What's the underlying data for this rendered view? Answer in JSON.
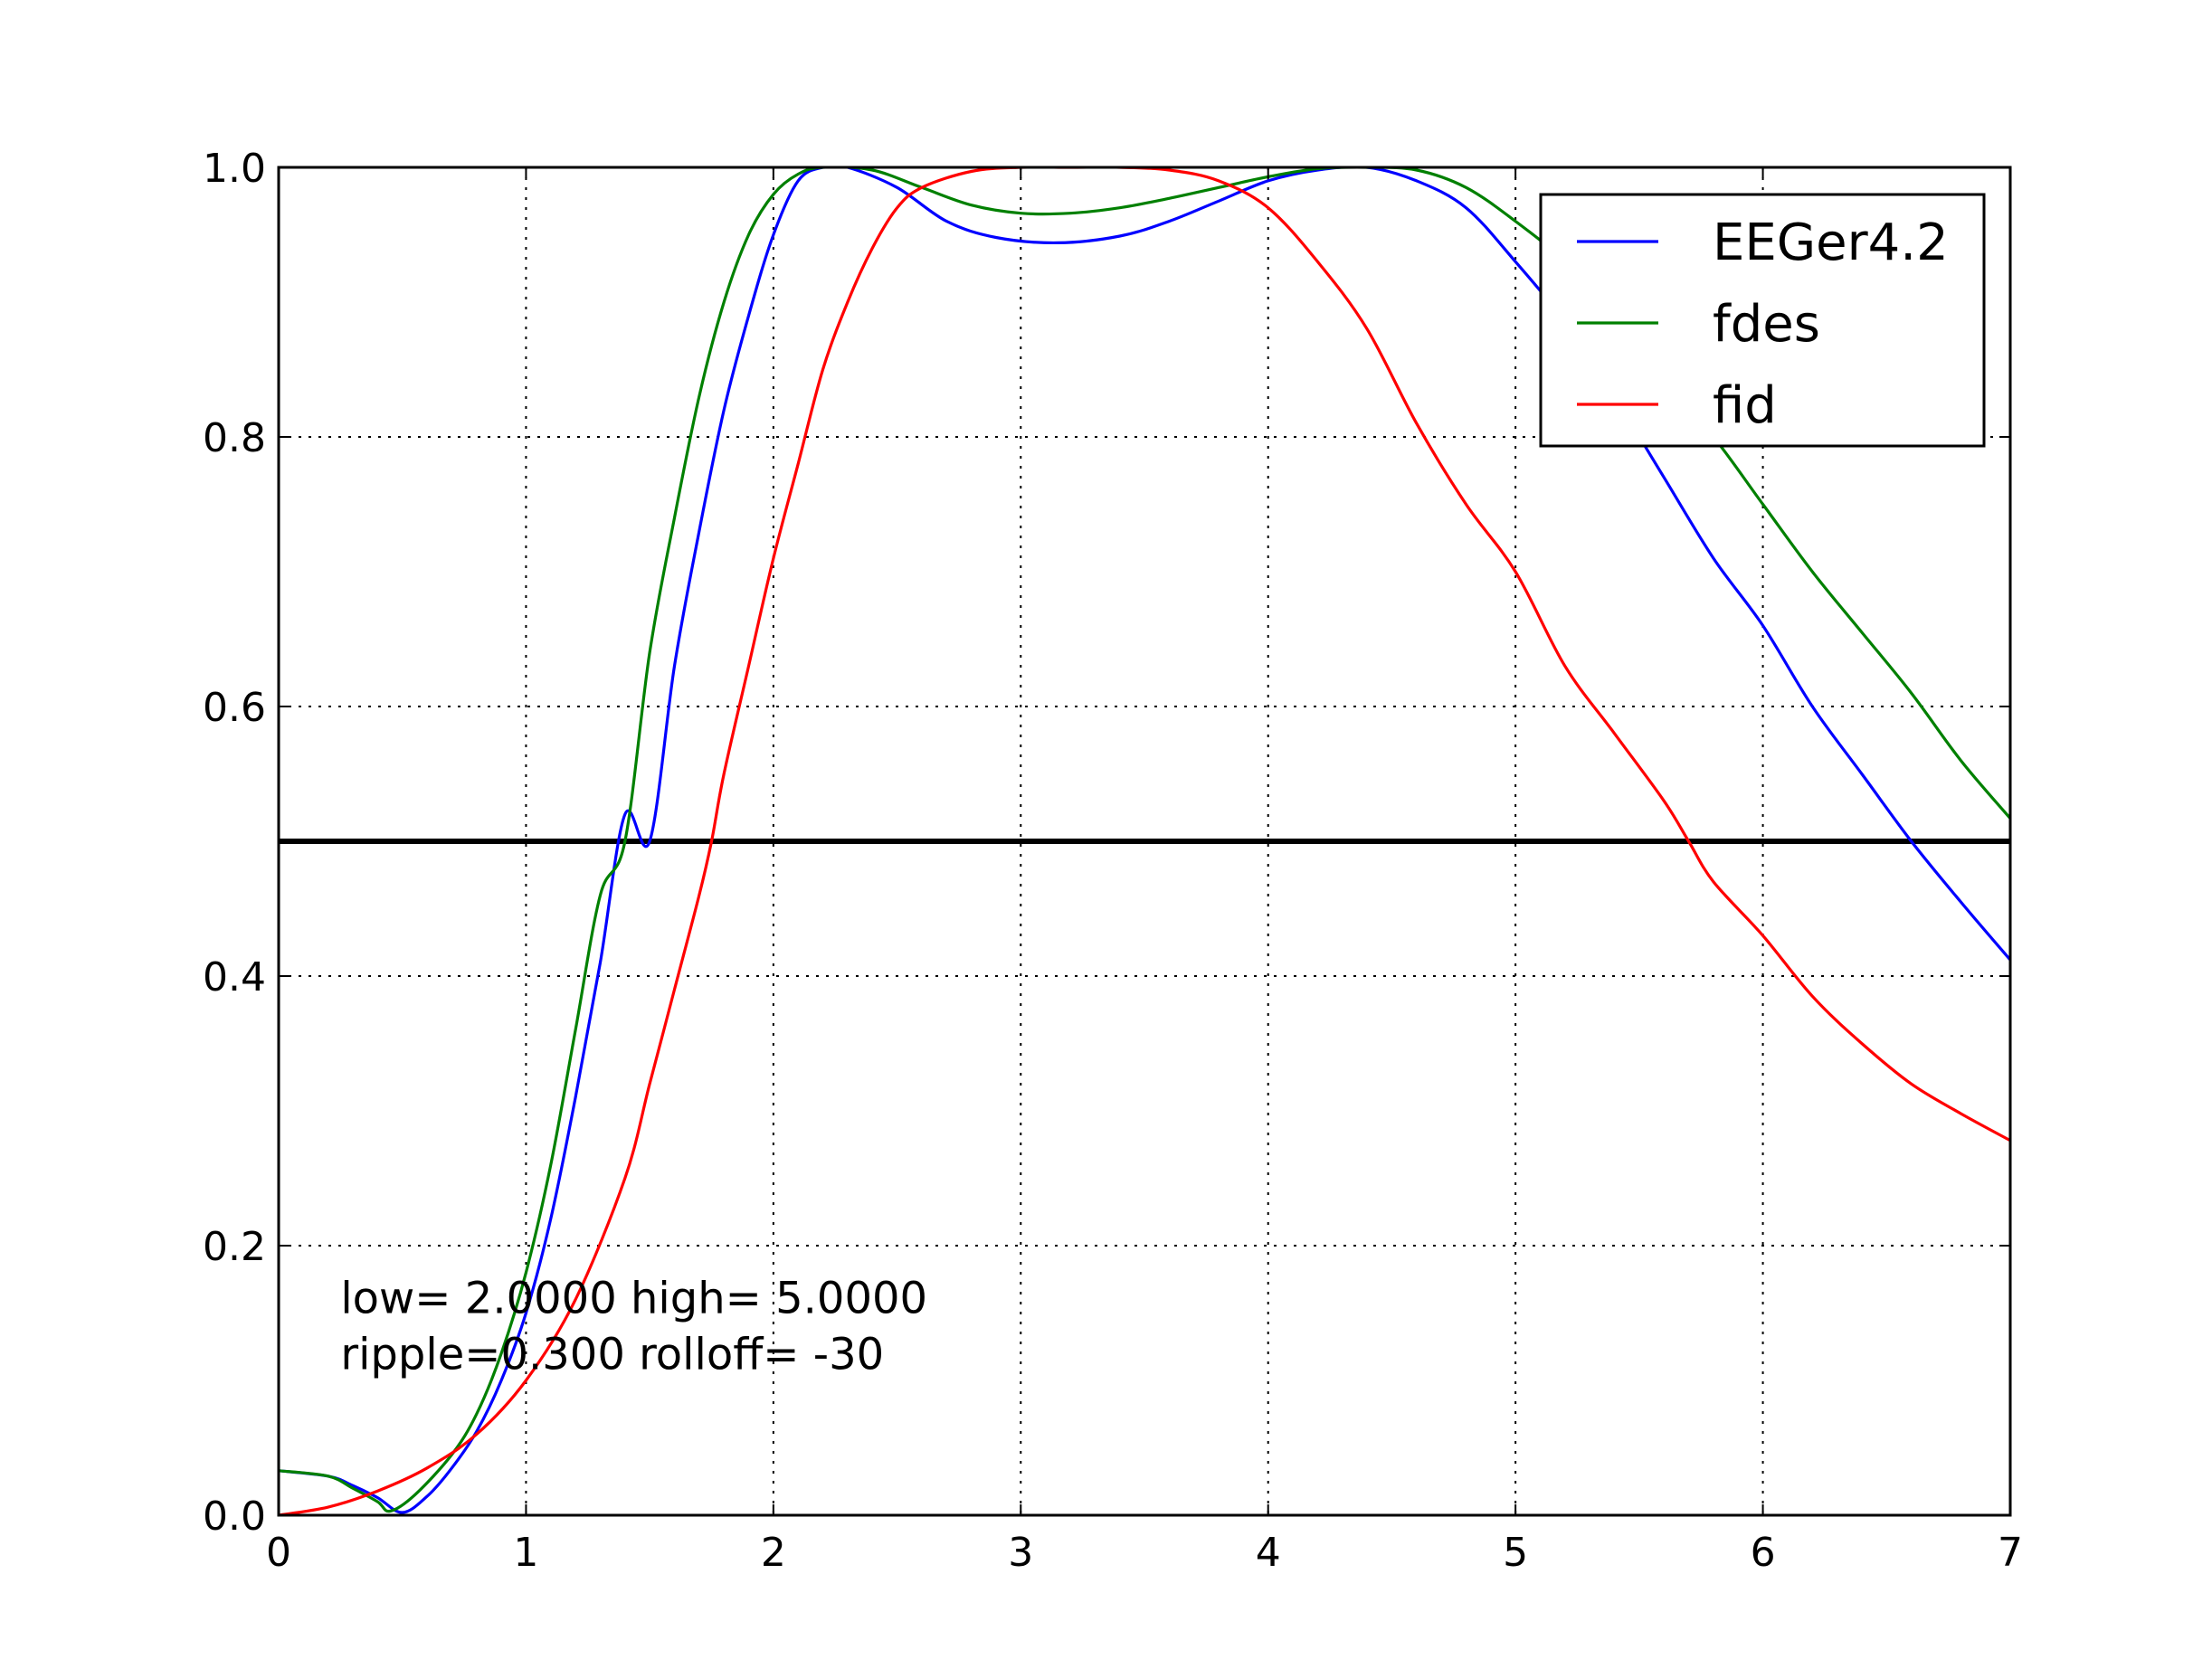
{
  "chart_data": {
    "type": "line",
    "title": "",
    "xlabel": "",
    "ylabel": "",
    "xlim": [
      0,
      7
    ],
    "ylim": [
      0,
      1.0
    ],
    "grid": true,
    "legend_position": "top-right",
    "x_ticks": [
      {
        "value": 0,
        "label": "0"
      },
      {
        "value": 1,
        "label": "1"
      },
      {
        "value": 2,
        "label": "2"
      },
      {
        "value": 3,
        "label": "3"
      },
      {
        "value": 4,
        "label": "4"
      },
      {
        "value": 5,
        "label": "5"
      },
      {
        "value": 6,
        "label": "6"
      },
      {
        "value": 7,
        "label": "7"
      }
    ],
    "y_ticks": [
      {
        "value": 0.0,
        "label": "0.0"
      },
      {
        "value": 0.2,
        "label": "0.2"
      },
      {
        "value": 0.4,
        "label": "0.4"
      },
      {
        "value": 0.6,
        "label": "0.6"
      },
      {
        "value": 0.8,
        "label": "0.8"
      },
      {
        "value": 1.0,
        "label": "1.0"
      }
    ],
    "series": [
      {
        "name": "EEGer4.2",
        "color": "#0000ff",
        "points": [
          [
            0,
            0.033
          ],
          [
            0.2,
            0.029
          ],
          [
            0.3,
            0.022
          ],
          [
            0.4,
            0.013
          ],
          [
            0.5,
            0.002
          ],
          [
            0.6,
            0.014
          ],
          [
            0.7,
            0.035
          ],
          [
            0.8,
            0.062
          ],
          [
            0.9,
            0.1
          ],
          [
            1.0,
            0.15
          ],
          [
            1.1,
            0.22
          ],
          [
            1.2,
            0.31
          ],
          [
            1.3,
            0.41
          ],
          [
            1.4,
            0.52
          ],
          [
            1.5,
            0.5
          ],
          [
            1.6,
            0.63
          ],
          [
            1.7,
            0.73
          ],
          [
            1.8,
            0.82
          ],
          [
            1.9,
            0.89
          ],
          [
            2.0,
            0.95
          ],
          [
            2.1,
            0.99
          ],
          [
            2.2,
            1.0
          ],
          [
            2.3,
            1.0
          ],
          [
            2.5,
            0.985
          ],
          [
            2.7,
            0.96
          ],
          [
            2.9,
            0.948
          ],
          [
            3.15,
            0.944
          ],
          [
            3.4,
            0.949
          ],
          [
            3.6,
            0.96
          ],
          [
            3.8,
            0.975
          ],
          [
            4.0,
            0.99
          ],
          [
            4.2,
            0.998
          ],
          [
            4.4,
            1.0
          ],
          [
            4.6,
            0.99
          ],
          [
            4.8,
            0.97
          ],
          [
            5.0,
            0.93
          ],
          [
            5.2,
            0.885
          ],
          [
            5.4,
            0.83
          ],
          [
            5.6,
            0.77
          ],
          [
            5.8,
            0.71
          ],
          [
            6.0,
            0.66
          ],
          [
            6.2,
            0.6
          ],
          [
            6.4,
            0.55
          ],
          [
            6.6,
            0.5
          ],
          [
            6.8,
            0.455
          ],
          [
            7.0,
            0.412
          ]
        ]
      },
      {
        "name": "fdes",
        "color": "#008000",
        "points": [
          [
            0,
            0.033
          ],
          [
            0.2,
            0.029
          ],
          [
            0.3,
            0.02
          ],
          [
            0.4,
            0.01
          ],
          [
            0.45,
            0.003
          ],
          [
            0.55,
            0.015
          ],
          [
            0.7,
            0.045
          ],
          [
            0.8,
            0.075
          ],
          [
            0.9,
            0.12
          ],
          [
            1.0,
            0.18
          ],
          [
            1.1,
            0.26
          ],
          [
            1.2,
            0.36
          ],
          [
            1.3,
            0.46
          ],
          [
            1.4,
            0.5
          ],
          [
            1.5,
            0.64
          ],
          [
            1.6,
            0.74
          ],
          [
            1.7,
            0.83
          ],
          [
            1.8,
            0.9
          ],
          [
            1.9,
            0.95
          ],
          [
            2.0,
            0.98
          ],
          [
            2.1,
            0.995
          ],
          [
            2.2,
            1.0
          ],
          [
            2.4,
            0.998
          ],
          [
            2.6,
            0.985
          ],
          [
            2.8,
            0.972
          ],
          [
            3.0,
            0.966
          ],
          [
            3.2,
            0.966
          ],
          [
            3.4,
            0.97
          ],
          [
            3.6,
            0.977
          ],
          [
            3.8,
            0.985
          ],
          [
            4.0,
            0.993
          ],
          [
            4.2,
            0.999
          ],
          [
            4.4,
            1.0
          ],
          [
            4.6,
            0.998
          ],
          [
            4.8,
            0.985
          ],
          [
            5.0,
            0.96
          ],
          [
            5.2,
            0.93
          ],
          [
            5.4,
            0.89
          ],
          [
            5.6,
            0.84
          ],
          [
            5.8,
            0.8
          ],
          [
            6.0,
            0.75
          ],
          [
            6.2,
            0.7
          ],
          [
            6.4,
            0.655
          ],
          [
            6.6,
            0.61
          ],
          [
            6.8,
            0.56
          ],
          [
            7.0,
            0.517
          ]
        ]
      },
      {
        "name": "fid",
        "color": "#ff0000",
        "points": [
          [
            0,
            0.0
          ],
          [
            0.2,
            0.006
          ],
          [
            0.4,
            0.018
          ],
          [
            0.6,
            0.035
          ],
          [
            0.8,
            0.06
          ],
          [
            1.0,
            0.1
          ],
          [
            1.2,
            0.16
          ],
          [
            1.4,
            0.25
          ],
          [
            1.5,
            0.32
          ],
          [
            1.6,
            0.39
          ],
          [
            1.7,
            0.46
          ],
          [
            1.75,
            0.5
          ],
          [
            1.8,
            0.55
          ],
          [
            1.9,
            0.63
          ],
          [
            2.0,
            0.71
          ],
          [
            2.1,
            0.78
          ],
          [
            2.2,
            0.85
          ],
          [
            2.3,
            0.9
          ],
          [
            2.4,
            0.94
          ],
          [
            2.5,
            0.97
          ],
          [
            2.6,
            0.985
          ],
          [
            2.8,
            0.997
          ],
          [
            3.0,
            1.0
          ],
          [
            3.2,
            1.0
          ],
          [
            3.4,
            1.0
          ],
          [
            3.6,
            0.998
          ],
          [
            3.8,
            0.99
          ],
          [
            4.0,
            0.97
          ],
          [
            4.2,
            0.93
          ],
          [
            4.4,
            0.88
          ],
          [
            4.6,
            0.81
          ],
          [
            4.8,
            0.75
          ],
          [
            5.0,
            0.7
          ],
          [
            5.2,
            0.63
          ],
          [
            5.4,
            0.58
          ],
          [
            5.6,
            0.53
          ],
          [
            5.7,
            0.5
          ],
          [
            5.8,
            0.47
          ],
          [
            6.0,
            0.43
          ],
          [
            6.2,
            0.385
          ],
          [
            6.4,
            0.35
          ],
          [
            6.6,
            0.32
          ],
          [
            6.8,
            0.298
          ],
          [
            7.0,
            0.278
          ]
        ]
      }
    ],
    "reference_lines": [
      {
        "y": 0.5,
        "color": "#000000"
      }
    ],
    "annotations": [
      {
        "line1": "low= 2.0000 high= 5.0000",
        "line2": "ripple=0.300 rolloff= -30",
        "x": 0.25,
        "y": 0.15
      }
    ]
  }
}
